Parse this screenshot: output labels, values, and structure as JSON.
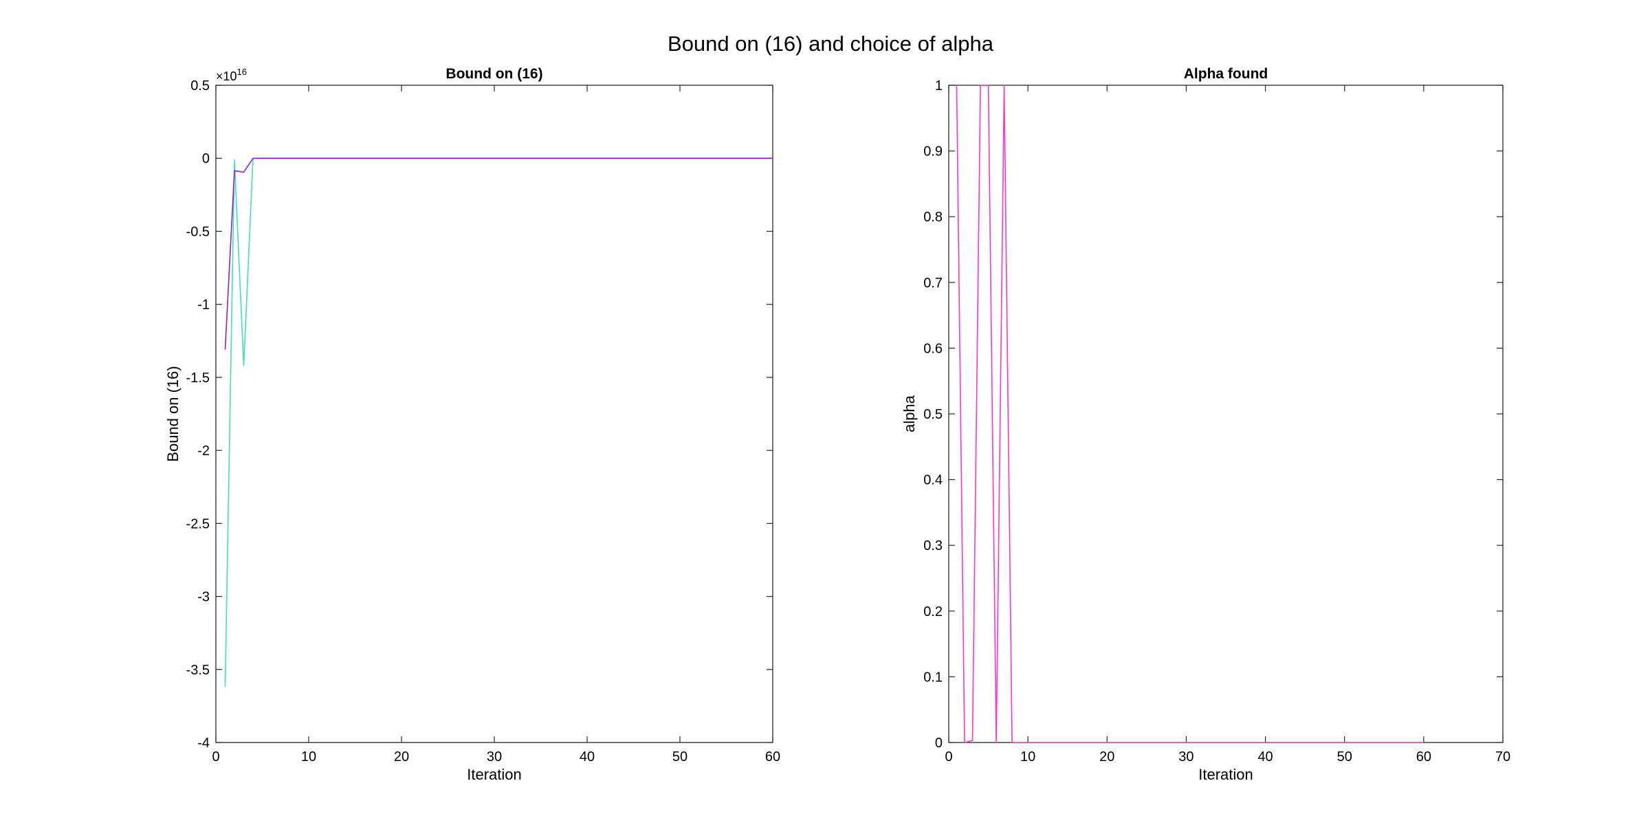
{
  "figure": {
    "suptitle": "Bound on (16) and choice of alpha"
  },
  "colors": {
    "bound_series_1": "#40e0b0",
    "bound_series_2": "#8c1ee0",
    "alpha_series": "#ff33cc",
    "axes": "#262626",
    "background": "#ffffff"
  },
  "chart_data": [
    {
      "type": "line",
      "title": "Bound on (16)",
      "xlabel": "Iteration",
      "ylabel": "Bound on (16)",
      "xlim": [
        0,
        60
      ],
      "ylim": [
        -4e+16,
        5000000000000000.0
      ],
      "xticks": [
        0,
        10,
        20,
        30,
        40,
        50,
        60
      ],
      "xtick_labels": [
        "0",
        "10",
        "20",
        "30",
        "40",
        "50",
        "60"
      ],
      "yticks": [
        -4e+16,
        -3.5e+16,
        -3e+16,
        -2.5e+16,
        -2e+16,
        -1.5e+16,
        -1e+16,
        -5000000000000000.0,
        0,
        5000000000000000.0
      ],
      "ytick_labels": [
        "-4",
        "-3.5",
        "-3",
        "-2.5",
        "-2",
        "-1.5",
        "-1",
        "-0.5",
        "0",
        "0.5"
      ],
      "exponent_label": {
        "base": "×10",
        "power": "16"
      },
      "grid": false,
      "series": [
        {
          "color_key": "bound_series_1",
          "x": [
            1,
            2,
            3,
            4,
            5,
            6,
            7,
            8,
            9,
            10,
            15,
            20,
            30,
            40,
            50,
            60
          ],
          "y": [
            -3.62e+16,
            -100000000000000.0,
            -1.42e+16,
            -10000000000000.0,
            0,
            0,
            0,
            0,
            0,
            0,
            0,
            0,
            0,
            0,
            0,
            0
          ]
        },
        {
          "color_key": "bound_series_2",
          "x": [
            1,
            2,
            3,
            4,
            5,
            6,
            7,
            8,
            9,
            10,
            15,
            20,
            30,
            40,
            50,
            60
          ],
          "y": [
            -1.31e+16,
            -850000000000000.0,
            -950000000000000.0,
            -5000000000000.0,
            0,
            0,
            0,
            0,
            0,
            0,
            0,
            0,
            0,
            0,
            0,
            0
          ]
        }
      ]
    },
    {
      "type": "line",
      "title": "Alpha found",
      "xlabel": "Iteration",
      "ylabel": "alpha",
      "xlim": [
        0,
        70
      ],
      "ylim": [
        0,
        1
      ],
      "xticks": [
        0,
        10,
        20,
        30,
        40,
        50,
        60,
        70
      ],
      "xtick_labels": [
        "0",
        "10",
        "20",
        "30",
        "40",
        "50",
        "60",
        "70"
      ],
      "yticks": [
        0,
        0.1,
        0.2,
        0.3,
        0.4,
        0.5,
        0.6,
        0.7,
        0.8,
        0.9,
        1
      ],
      "ytick_labels": [
        "0",
        "0.1",
        "0.2",
        "0.3",
        "0.4",
        "0.5",
        "0.6",
        "0.7",
        "0.8",
        "0.9",
        "1"
      ],
      "grid": false,
      "series": [
        {
          "color_key": "alpha_series",
          "x": [
            1,
            2,
            3,
            4,
            5,
            6,
            7,
            8,
            9,
            10,
            20,
            30,
            40,
            50,
            60
          ],
          "y": [
            1,
            0,
            0.003,
            1,
            1,
            0,
            1,
            0,
            0,
            0,
            0,
            0,
            0,
            0,
            0
          ]
        }
      ]
    }
  ]
}
